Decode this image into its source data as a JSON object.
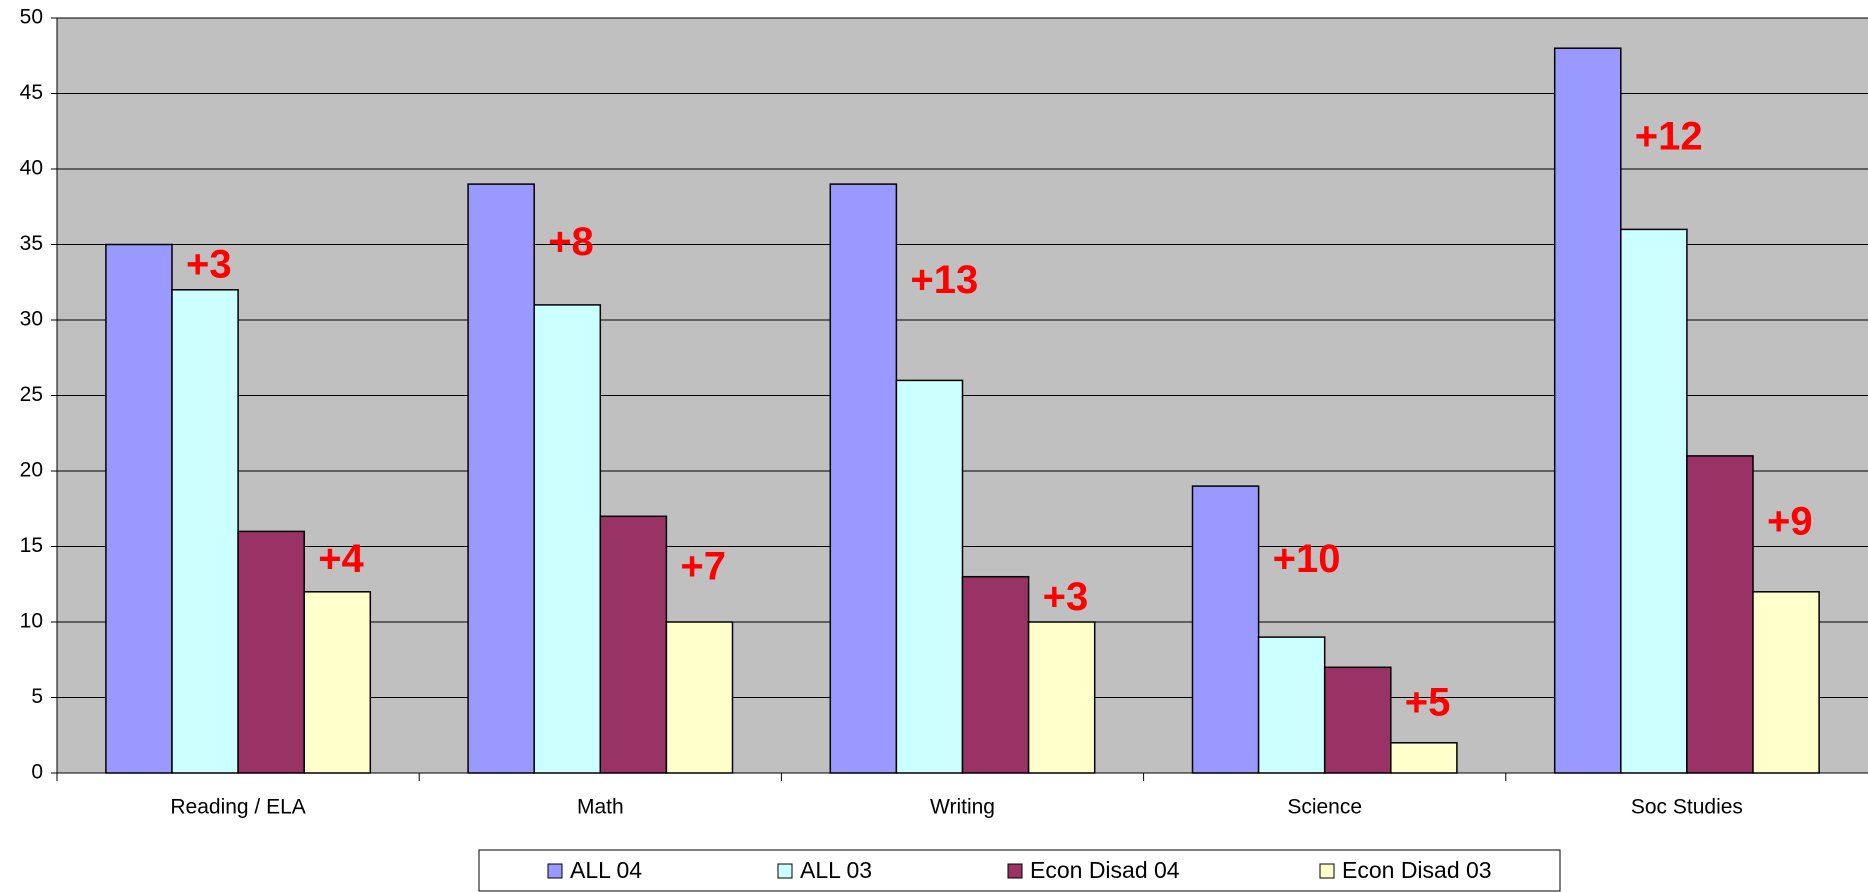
{
  "chart_data": {
    "type": "bar",
    "categories": [
      "Reading / ELA",
      "Math",
      "Writing",
      "Science",
      "Soc Studies"
    ],
    "series": [
      {
        "name": "ALL 04",
        "color": "#9999ff",
        "values": [
          35,
          39,
          39,
          19,
          48
        ]
      },
      {
        "name": "ALL 03",
        "color": "#ccffff",
        "values": [
          32,
          31,
          26,
          9,
          36
        ]
      },
      {
        "name": "Econ Disad 04",
        "color": "#993366",
        "values": [
          16,
          17,
          13,
          7,
          21
        ]
      },
      {
        "name": "Econ Disad 03",
        "color": "#ffffcc",
        "values": [
          12,
          10,
          10,
          2,
          12
        ]
      }
    ],
    "annotations": [
      [
        "+3",
        "+4"
      ],
      [
        "+8",
        "+7"
      ],
      [
        "+13",
        "+3"
      ],
      [
        "+10",
        "+5"
      ],
      [
        "+12",
        "+9"
      ]
    ],
    "ylim": [
      0,
      50
    ],
    "yticks": [
      0,
      5,
      10,
      15,
      20,
      25,
      30,
      35,
      40,
      45,
      50
    ],
    "grid": true,
    "background": "#c0c0c0",
    "legend": "bottom"
  }
}
